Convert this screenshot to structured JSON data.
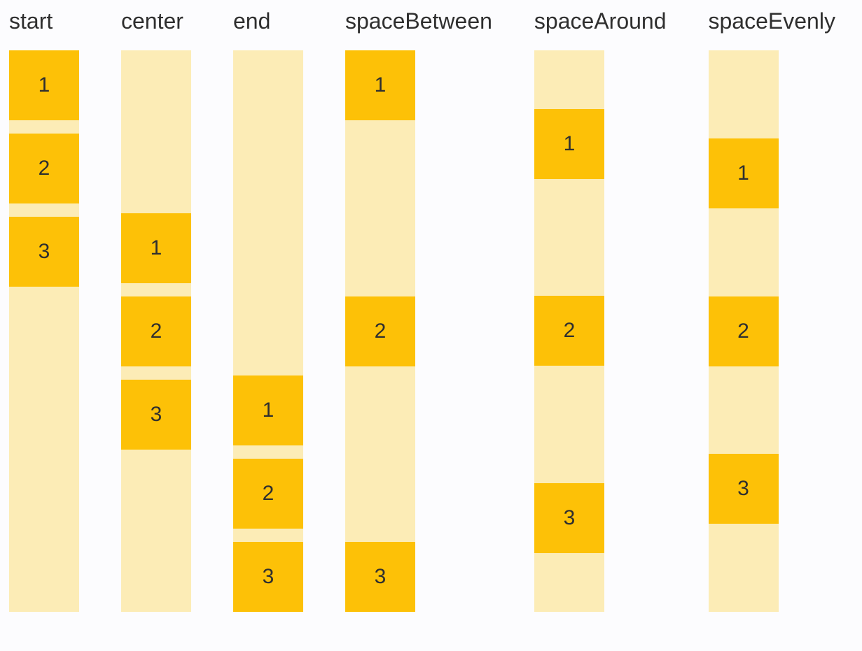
{
  "page": {
    "background_color": "#FCFCFE",
    "text_color": "#2F2F2F"
  },
  "demo": {
    "box_color": "#FDC107",
    "container_color": "#FCECB6",
    "columns": [
      {
        "label": "start",
        "justify": "flex-start",
        "gapped": true,
        "items": [
          "1",
          "2",
          "3"
        ]
      },
      {
        "label": "center",
        "justify": "center",
        "gapped": true,
        "items": [
          "1",
          "2",
          "3"
        ]
      },
      {
        "label": "end",
        "justify": "flex-end",
        "gapped": true,
        "items": [
          "1",
          "2",
          "3"
        ]
      },
      {
        "label": "spaceBetween",
        "justify": "space-between",
        "gapped": false,
        "items": [
          "1",
          "2",
          "3"
        ]
      },
      {
        "label": "spaceAround",
        "justify": "space-around",
        "gapped": false,
        "items": [
          "1",
          "2",
          "3"
        ]
      },
      {
        "label": "spaceEvenly",
        "justify": "space-evenly",
        "gapped": false,
        "items": [
          "1",
          "2",
          "3"
        ]
      }
    ]
  }
}
